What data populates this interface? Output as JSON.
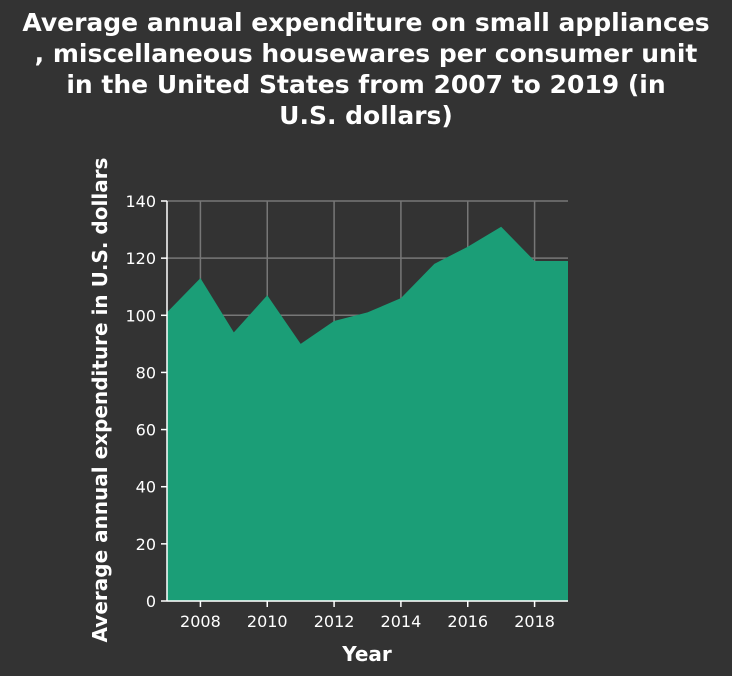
{
  "chart_data": {
    "type": "area",
    "title_lines": [
      "Average annual expenditure on small appliances",
      ", miscellaneous housewares per consumer unit",
      "in the United States from 2007 to 2019 (in",
      "U.S. dollars)"
    ],
    "xlabel": "Year",
    "ylabel": "Average annual expenditure in U.S. dollars",
    "x": [
      2007,
      2008,
      2009,
      2010,
      2011,
      2012,
      2013,
      2014,
      2015,
      2016,
      2017,
      2018,
      2019
    ],
    "values": [
      101,
      113,
      94,
      107,
      90,
      98,
      101,
      106,
      118,
      124,
      131,
      119,
      119
    ],
    "xlim": [
      2007,
      2019
    ],
    "ylim": [
      0,
      140
    ],
    "xticks": [
      2008,
      2010,
      2012,
      2014,
      2016,
      2018
    ],
    "yticks": [
      0,
      20,
      40,
      60,
      80,
      100,
      120,
      140
    ],
    "grid": true,
    "colors": {
      "background": "#333333",
      "fill": "#1b9e77",
      "grid": "#777777",
      "text": "#ffffff"
    }
  }
}
